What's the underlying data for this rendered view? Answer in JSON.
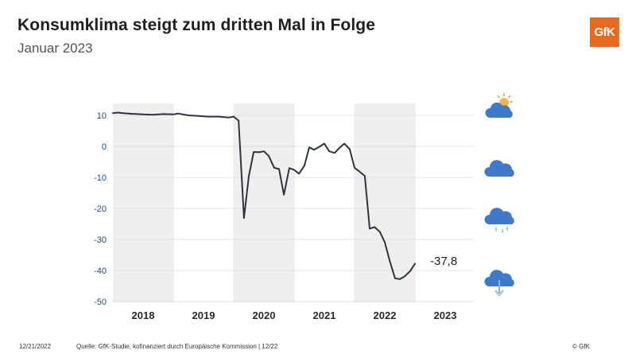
{
  "header": {
    "title": "Konsumklima steigt zum dritten Mal in Folge",
    "subtitle": "Januar 2023",
    "logo_text": "GfK"
  },
  "footer": {
    "date": "12/21/2022",
    "source": "Quelle: GfK-Studie, kofinanziert durch Europäische Kommission | 12/22",
    "copyright": "© GfK"
  },
  "weather_icons": [
    "sun-cloud-icon",
    "cloud-icon",
    "rain-cloud-icon",
    "falling-arrow-cloud-icon"
  ],
  "colors": {
    "line": "#2e3440",
    "band": "#efefef",
    "axis_tick": "#1f4e79",
    "cloud": "#3f79c9",
    "logo": "#e96a1f"
  },
  "chart_data": {
    "type": "line",
    "title": "Konsumklima steigt zum dritten Mal in Folge",
    "subtitle": "Januar 2023",
    "xlabel": "",
    "ylabel": "",
    "xlim": [
      2018.0,
      2023.0
    ],
    "ylim": [
      -50,
      12
    ],
    "yticks": [
      10,
      0,
      -10,
      -20,
      -30,
      -40,
      -50
    ],
    "xtick_labels": [
      "2018",
      "2019",
      "2020",
      "2021",
      "2022",
      "2023"
    ],
    "shaded_years": [
      "2018",
      "2020",
      "2022"
    ],
    "grid": "horizontal",
    "end_label": "-37,8",
    "series": [
      {
        "x": [
          2018.0,
          2018.08,
          2018.17,
          2018.33,
          2018.5,
          2018.67,
          2018.83,
          2019.0,
          2019.08,
          2019.25,
          2019.42,
          2019.58,
          2019.75,
          2019.92,
          2020.0,
          2020.08,
          2020.17,
          2020.25,
          2020.33,
          2020.42,
          2020.5,
          2020.58,
          2020.67,
          2020.75,
          2020.83,
          2020.92,
          2021.0,
          2021.08,
          2021.17,
          2021.25,
          2021.33,
          2021.42,
          2021.5,
          2021.58,
          2021.67,
          2021.75,
          2021.83,
          2021.92,
          2022.0,
          2022.08,
          2022.17,
          2022.25,
          2022.33,
          2022.42,
          2022.5,
          2022.58,
          2022.67,
          2022.75,
          2022.83,
          2022.92,
          2023.0
        ],
        "y": [
          10.7,
          10.9,
          10.7,
          10.5,
          10.3,
          10.2,
          10.4,
          10.3,
          10.6,
          10.0,
          9.8,
          9.6,
          9.6,
          9.3,
          9.6,
          8.3,
          -23.1,
          -9.6,
          -1.8,
          -1.9,
          -1.6,
          -3.1,
          -6.9,
          -7.3,
          -15.6,
          -7.0,
          -7.6,
          -8.8,
          -6.2,
          -0.3,
          -1.1,
          -0.1,
          0.9,
          -1.6,
          -2.1,
          -0.5,
          0.9,
          -0.9,
          -6.9,
          -8.1,
          -9.5,
          -26.5,
          -26.0,
          -27.6,
          -30.9,
          -36.8,
          -42.5,
          -42.8,
          -41.9,
          -40.2,
          -37.8
        ]
      }
    ]
  }
}
